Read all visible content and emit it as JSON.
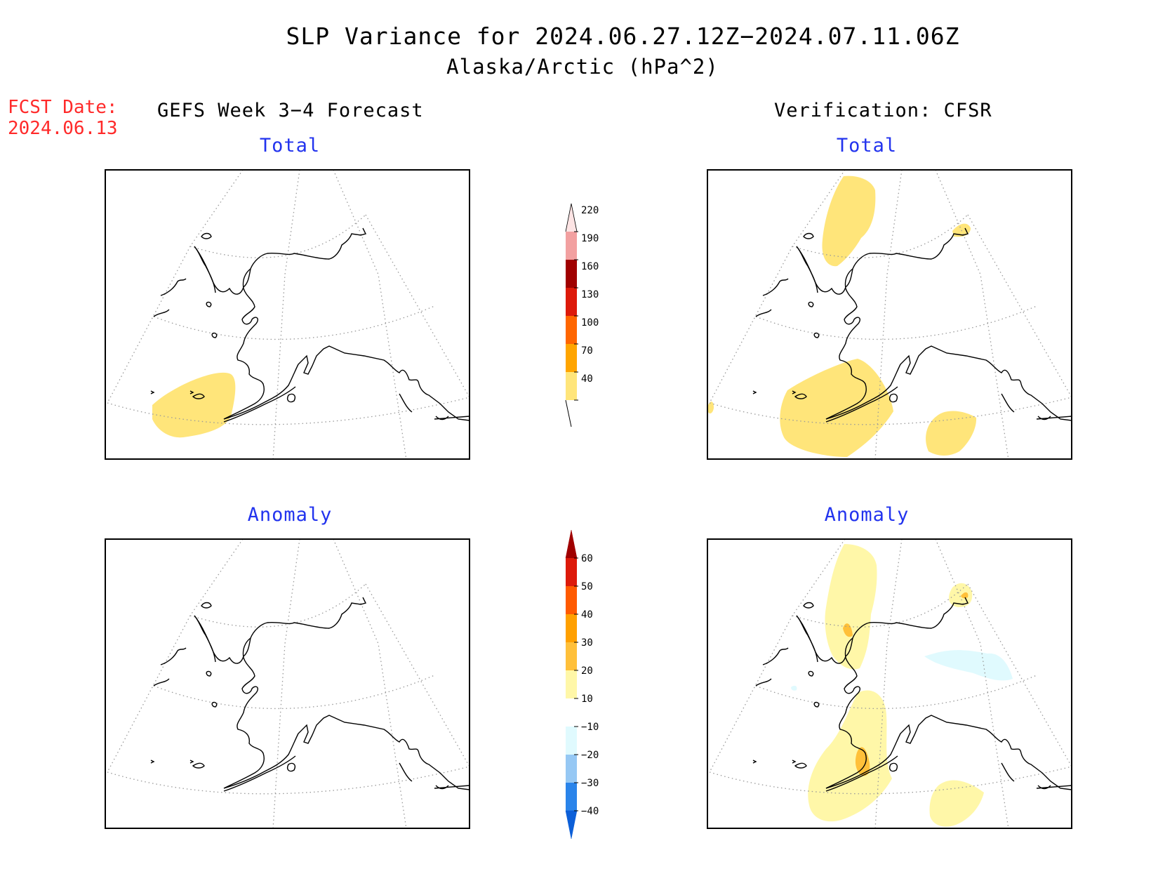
{
  "title": {
    "line1": "SLP Variance for 2024.06.27.12Z−2024.07.11.06Z",
    "line2": "Alaska/Arctic (hPa^2)"
  },
  "forecast_date": {
    "label": "FCST Date:",
    "value": "2024.06.13"
  },
  "columns": {
    "left": "GEFS Week 3−4 Forecast",
    "right": "Verification: CFSR"
  },
  "panels": {
    "top_left": "Total",
    "top_right": "Total",
    "bottom_left": "Anomaly",
    "bottom_right": "Anomaly"
  },
  "colorbar_total": {
    "labels": [
      "40",
      "70",
      "100",
      "130",
      "160",
      "190",
      "220"
    ],
    "colors": [
      "#ffe57a",
      "#ffa500",
      "#ff6600",
      "#dd1a0a",
      "#a00000",
      "#f2a0a0",
      "#fde4e4"
    ]
  },
  "colorbar_anomaly": {
    "labels": [
      "−40",
      "−30",
      "−20",
      "−10",
      "10",
      "20",
      "30",
      "40",
      "50",
      "60"
    ],
    "colors": [
      "#0c5fd8",
      "#2a84ea",
      "#96c8f4",
      "#e0fafe",
      "#ffffff",
      "#fff7a8",
      "#ffc03a",
      "#ffa000",
      "#ff5a00",
      "#dd1a0a",
      "#a00000"
    ]
  },
  "shading_colors": {
    "total_40_70": "#ffe57a",
    "anom_10_20": "#fff7a8",
    "anom_20_30": "#ffc03a",
    "anom_neg_10_20": "#e0fafe"
  }
}
